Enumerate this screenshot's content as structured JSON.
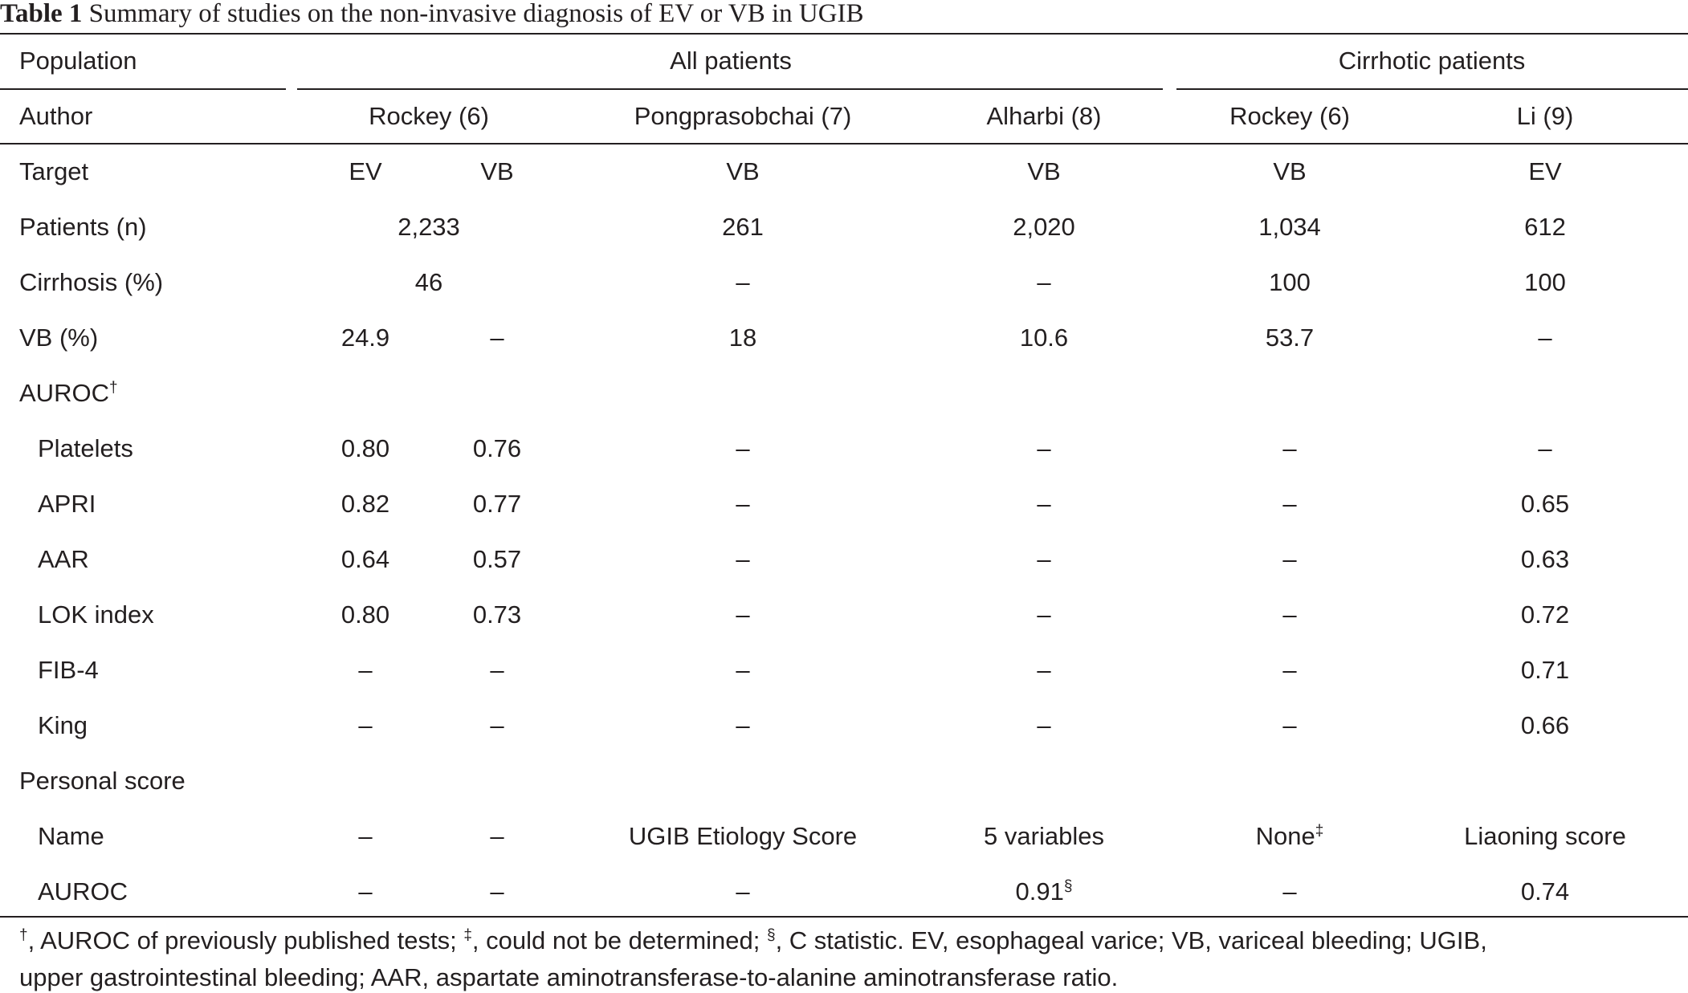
{
  "caption": {
    "label": "Table 1",
    "text": "Summary of studies on the non-invasive diagnosis of EV or VB in UGIB"
  },
  "header": {
    "population": "Population",
    "all_patients": "All patients",
    "cirrhotic_patients": "Cirrhotic patients",
    "author": "Author",
    "authors": [
      "Rockey (6)",
      "Pongprasobchai (7)",
      "Alharbi (8)",
      "Rockey (6)",
      "Li (9)"
    ]
  },
  "rows": {
    "target": {
      "label": "Target",
      "values": [
        "EV",
        "VB",
        "VB",
        "VB",
        "VB",
        "EV"
      ]
    },
    "patients": {
      "label": "Patients (n)",
      "values": [
        "2,233",
        "261",
        "2,020",
        "1,034",
        "612"
      ]
    },
    "cirrhosis": {
      "label": "Cirrhosis (%)",
      "values": [
        "46",
        "–",
        "–",
        "100",
        "100"
      ]
    },
    "vb": {
      "label": "VB (%)",
      "values": [
        "24.9",
        "–",
        "18",
        "10.6",
        "53.7",
        "–"
      ]
    },
    "auroc_header": {
      "label": "AUROC",
      "mark": "†"
    },
    "platelets": {
      "label": "Platelets",
      "values": [
        "0.80",
        "0.76",
        "–",
        "–",
        "–",
        "–"
      ]
    },
    "apri": {
      "label": "APRI",
      "values": [
        "0.82",
        "0.77",
        "–",
        "–",
        "–",
        "0.65"
      ]
    },
    "aar": {
      "label": "AAR",
      "values": [
        "0.64",
        "0.57",
        "–",
        "–",
        "–",
        "0.63"
      ]
    },
    "lok": {
      "label": "LOK index",
      "values": [
        "0.80",
        "0.73",
        "–",
        "–",
        "–",
        "0.72"
      ]
    },
    "fib4": {
      "label": "FIB-4",
      "values": [
        "–",
        "–",
        "–",
        "–",
        "–",
        "0.71"
      ]
    },
    "king": {
      "label": "King",
      "values": [
        "–",
        "–",
        "–",
        "–",
        "–",
        "0.66"
      ]
    },
    "personal": {
      "label": "Personal score"
    },
    "name": {
      "label": "Name",
      "values": [
        "–",
        "–",
        "UGIB Etiology Score",
        "5 variables",
        "None",
        "Liaoning score"
      ],
      "mark": "‡"
    },
    "auroc": {
      "label": "AUROC",
      "values": [
        "–",
        "–",
        "–",
        "0.91",
        "–",
        "0.74"
      ],
      "mark": "§"
    }
  },
  "footnote": {
    "dagger": "†",
    "dagger_text": ", AUROC of previously published tests; ",
    "ddagger": "‡",
    "ddagger_text": ", could not be determined; ",
    "section": "§",
    "section_text": ", C statistic. EV, esophageal varice; VB, variceal bleeding; UGIB,",
    "line2": "upper gastrointestinal bleeding; AAR, aspartate aminotransferase-to-alanine aminotransferase ratio."
  }
}
